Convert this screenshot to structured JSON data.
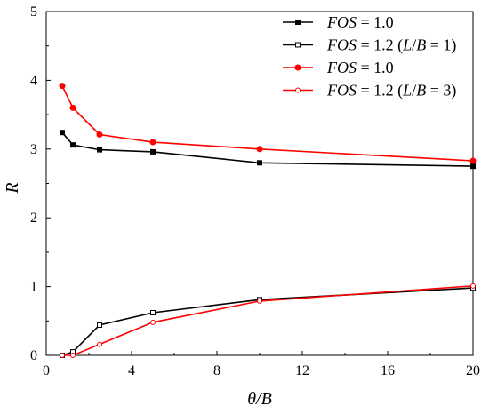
{
  "chart_data": {
    "type": "line",
    "xlabel": "θ/B",
    "ylabel": "R",
    "xlim": [
      0,
      20
    ],
    "ylim": [
      0,
      5
    ],
    "xticks": [
      "0",
      "4",
      "8",
      "12",
      "16",
      "20"
    ],
    "yticks": [
      "0",
      "1",
      "2",
      "3",
      "4",
      "5"
    ],
    "grid": false,
    "legend_position": "top-right",
    "series": [
      {
        "name": "FOS = 1.0",
        "legend_label": {
          "italic": "FOS",
          "rest": " = 1.0"
        },
        "color": "#000000",
        "marker": "filled-square",
        "x": [
          0.75,
          1.25,
          2.5,
          5,
          10,
          20
        ],
        "y": [
          3.24,
          3.06,
          2.99,
          2.96,
          2.8,
          2.75
        ]
      },
      {
        "name": "FOS = 1.2 (L/B = 1)",
        "legend_label": {
          "italic": "FOS",
          "rest": " = 1.2 (",
          "italic2": "L",
          "rest2": "/",
          "italic3": "B",
          "rest3": " = 1)"
        },
        "color": "#000000",
        "marker": "open-square",
        "x": [
          0.75,
          1.25,
          2.5,
          5,
          10,
          20
        ],
        "y": [
          0.0,
          0.05,
          0.44,
          0.62,
          0.81,
          0.98
        ]
      },
      {
        "name": "FOS = 1.0",
        "legend_label": {
          "italic": "FOS",
          "rest": " = 1.0"
        },
        "color": "#ff0000",
        "marker": "filled-circle",
        "x": [
          0.75,
          1.25,
          2.5,
          5,
          10,
          20
        ],
        "y": [
          3.92,
          3.6,
          3.21,
          3.1,
          3.0,
          2.83
        ]
      },
      {
        "name": "FOS = 1.2 (L/B = 3)",
        "legend_label": {
          "italic": "FOS",
          "rest": " = 1.2 (",
          "italic2": "L",
          "rest2": "/",
          "italic3": "B",
          "rest3": " = 3)"
        },
        "color": "#ff0000",
        "marker": "open-circle",
        "x": [
          0.75,
          1.25,
          2.5,
          5,
          10,
          20
        ],
        "y": [
          0.0,
          0.0,
          0.16,
          0.48,
          0.79,
          1.01
        ]
      }
    ]
  }
}
